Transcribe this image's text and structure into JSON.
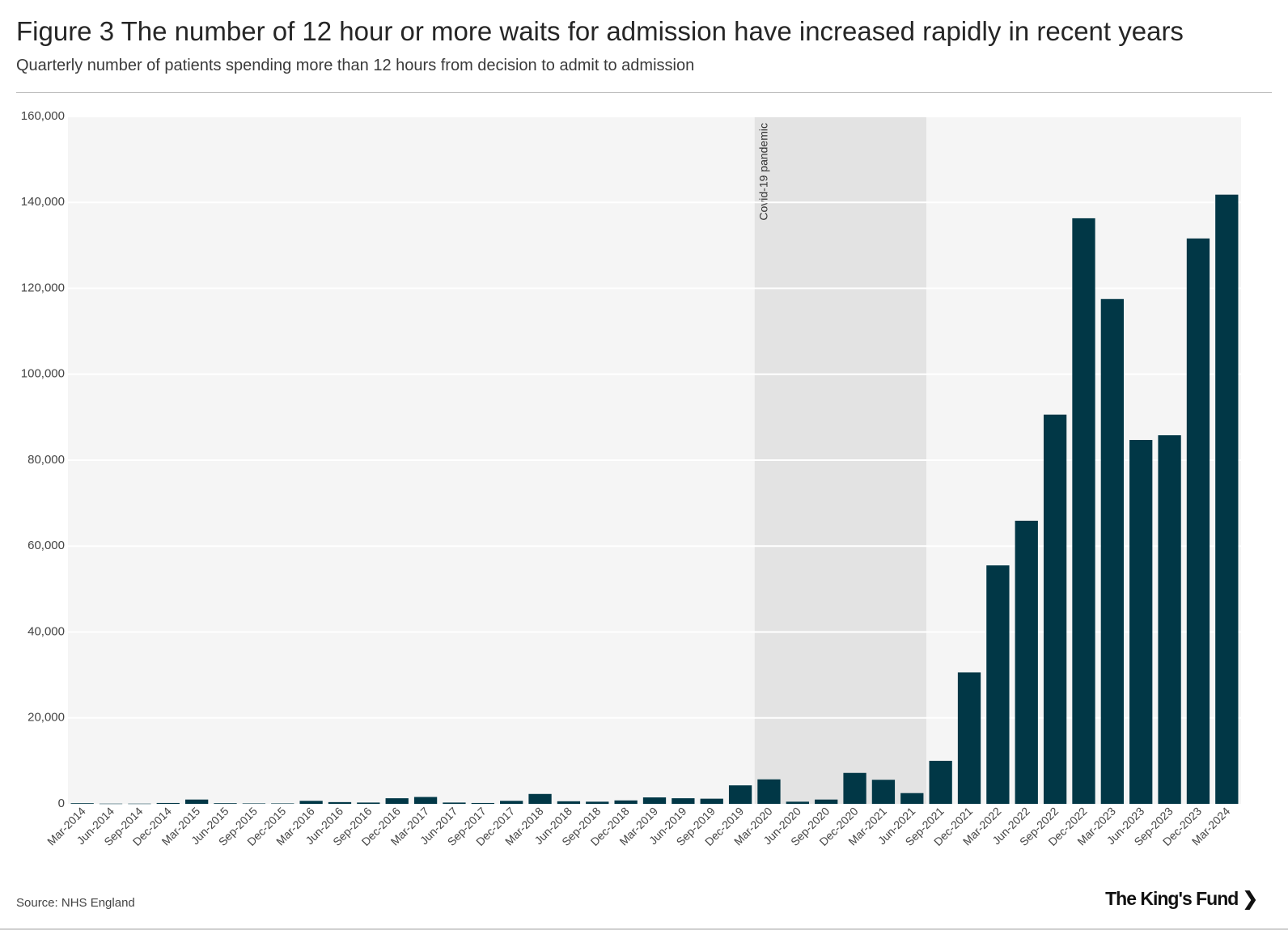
{
  "header": {
    "title": "Figure 3 The number of 12 hour or more waits for admission have increased rapidly in recent years",
    "subtitle": "Quarterly number of patients spending more than 12 hours from decision to admit to admission"
  },
  "footer": {
    "source": "Source: NHS England",
    "logo": "The King's Fund"
  },
  "colors": {
    "bar": "#013746",
    "plot_bg": "#f5f5f5",
    "shade": "#e3e3e3",
    "grid": "#ffffff"
  },
  "chart_data": {
    "type": "bar",
    "title": "Figure 3 The number of 12 hour or more waits for admission have increased rapidly in recent years",
    "subtitle": "Quarterly number of patients spending more than 12 hours from decision to admit to admission",
    "xlabel": "",
    "ylabel": "",
    "ylim": [
      0,
      160000
    ],
    "yticks": [
      0,
      20000,
      40000,
      60000,
      80000,
      100000,
      120000,
      140000,
      160000
    ],
    "ytick_labels": [
      "0",
      "20,000",
      "40,000",
      "60,000",
      "80,000",
      "100,000",
      "120,000",
      "140,000",
      "160,000"
    ],
    "grid": true,
    "categories": [
      "Mar-2014",
      "Jun-2014",
      "Sep-2014",
      "Dec-2014",
      "Mar-2015",
      "Jun-2015",
      "Sep-2015",
      "Dec-2015",
      "Mar-2016",
      "Jun-2016",
      "Sep-2016",
      "Dec-2016",
      "Mar-2017",
      "Jun-2017",
      "Sep-2017",
      "Dec-2017",
      "Mar-2018",
      "Jun-2018",
      "Sep-2018",
      "Dec-2018",
      "Mar-2019",
      "Jun-2019",
      "Sep-2019",
      "Dec-2019",
      "Mar-2020",
      "Jun-2020",
      "Sep-2020",
      "Dec-2020",
      "Mar-2021",
      "Jun-2021",
      "Sep-2021",
      "Dec-2021",
      "Mar-2022",
      "Jun-2022",
      "Sep-2022",
      "Dec-2022",
      "Mar-2023",
      "Jun-2023",
      "Sep-2023",
      "Dec-2023",
      "Mar-2024"
    ],
    "values": [
      150,
      50,
      50,
      200,
      1000,
      150,
      100,
      100,
      700,
      400,
      300,
      1300,
      1600,
      300,
      200,
      700,
      2300,
      600,
      500,
      800,
      1500,
      1300,
      1200,
      4300,
      5700,
      500,
      1000,
      7200,
      5600,
      2500,
      10000,
      30600,
      55500,
      65900,
      90600,
      136300,
      117500,
      84700,
      85800,
      131600,
      141800
    ],
    "annotation": {
      "label": "Covid-19 pandemic",
      "start": "Mar-2020",
      "end": "Jun-2021"
    }
  }
}
